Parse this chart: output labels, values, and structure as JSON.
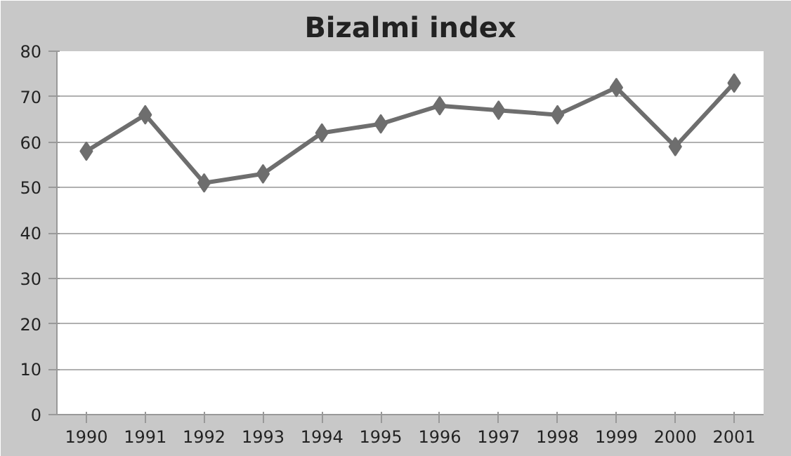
{
  "chart_data": {
    "type": "line",
    "title": "Bizalmi index",
    "categories": [
      "1990",
      "1991",
      "1992",
      "1993",
      "1994",
      "1995",
      "1996",
      "1997",
      "1998",
      "1999",
      "2000",
      "2001"
    ],
    "series": [
      {
        "color": "#6e6e6e",
        "values": [
          58,
          66,
          51,
          53,
          62,
          64,
          68,
          67,
          66,
          72,
          59,
          73
        ]
      }
    ],
    "ylim": [
      0,
      80
    ],
    "yticks": [
      0,
      10,
      20,
      30,
      40,
      50,
      60,
      70,
      80
    ],
    "grid": "y",
    "marker": "diamond",
    "line_style": "solid"
  }
}
